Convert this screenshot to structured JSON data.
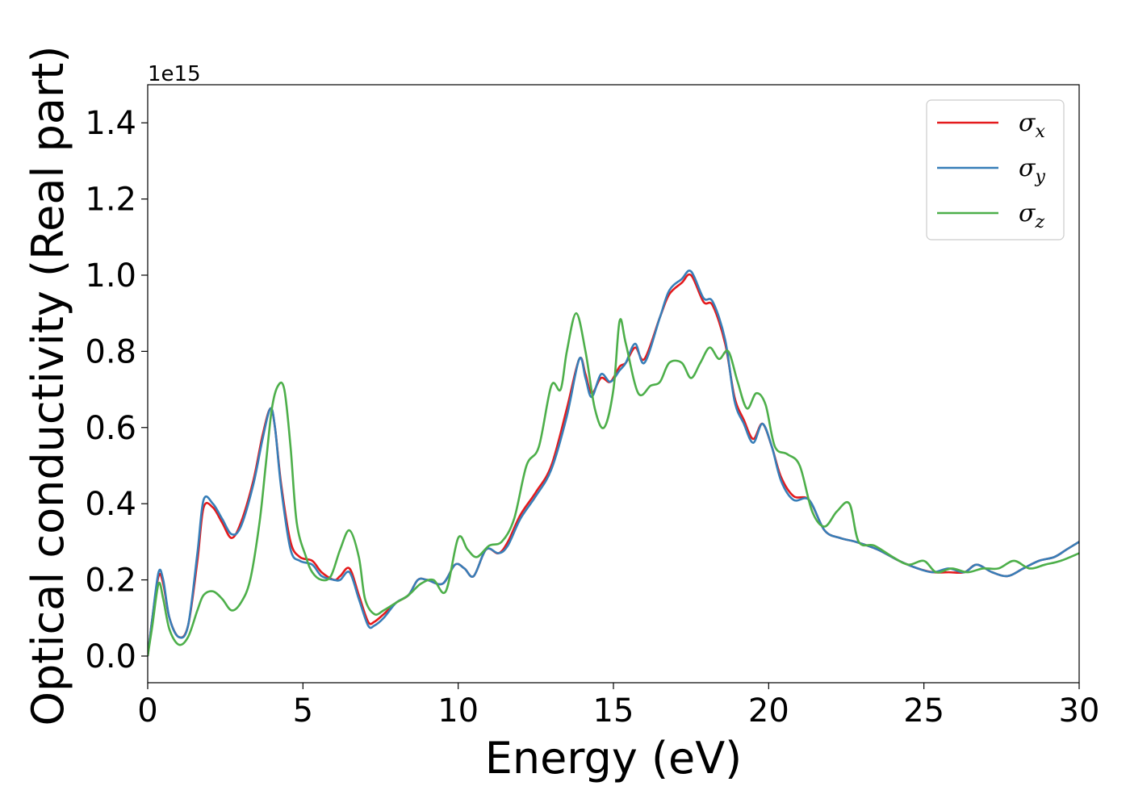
{
  "chart_data": {
    "type": "line",
    "xlabel": "Energy (eV)",
    "ylabel": "Optical conductivity (Real part)",
    "y_offset_label": "1e15",
    "xlim": [
      0,
      30
    ],
    "ylim": [
      -0.07,
      1.5
    ],
    "x_ticks": [
      0,
      5,
      10,
      15,
      20,
      25,
      30
    ],
    "y_ticks": [
      0.0,
      0.2,
      0.4,
      0.6,
      0.8,
      1.0,
      1.2,
      1.4
    ],
    "x_tick_labels": [
      "0",
      "5",
      "10",
      "15",
      "20",
      "25",
      "30"
    ],
    "y_tick_labels": [
      "0.0",
      "0.2",
      "0.4",
      "0.6",
      "0.8",
      "1.0",
      "1.2",
      "1.4"
    ],
    "grid": false,
    "legend_position": "top-right",
    "series": [
      {
        "name": "σx",
        "legend_symbol": "σ",
        "legend_subscript": "x",
        "color": "#e41a1c",
        "points": [
          [
            0,
            0
          ],
          [
            0.15,
            0.1
          ],
          [
            0.35,
            0.21
          ],
          [
            0.5,
            0.19
          ],
          [
            0.7,
            0.1
          ],
          [
            1.0,
            0.05
          ],
          [
            1.3,
            0.08
          ],
          [
            1.6,
            0.25
          ],
          [
            1.8,
            0.39
          ],
          [
            2.1,
            0.39
          ],
          [
            2.4,
            0.35
          ],
          [
            2.7,
            0.31
          ],
          [
            3.0,
            0.35
          ],
          [
            3.4,
            0.46
          ],
          [
            3.7,
            0.58
          ],
          [
            3.95,
            0.65
          ],
          [
            4.1,
            0.6
          ],
          [
            4.3,
            0.45
          ],
          [
            4.6,
            0.3
          ],
          [
            4.9,
            0.26
          ],
          [
            5.3,
            0.25
          ],
          [
            5.6,
            0.22
          ],
          [
            6.0,
            0.2
          ],
          [
            6.2,
            0.21
          ],
          [
            6.5,
            0.23
          ],
          [
            6.8,
            0.16
          ],
          [
            7.1,
            0.09
          ],
          [
            7.3,
            0.09
          ],
          [
            7.6,
            0.11
          ],
          [
            8.0,
            0.14
          ],
          [
            8.4,
            0.16
          ],
          [
            8.7,
            0.2
          ],
          [
            9.0,
            0.2
          ],
          [
            9.5,
            0.19
          ],
          [
            9.9,
            0.24
          ],
          [
            10.2,
            0.23
          ],
          [
            10.5,
            0.21
          ],
          [
            10.9,
            0.28
          ],
          [
            11.3,
            0.27
          ],
          [
            11.6,
            0.3
          ],
          [
            12.0,
            0.37
          ],
          [
            12.5,
            0.43
          ],
          [
            13.0,
            0.5
          ],
          [
            13.5,
            0.65
          ],
          [
            13.9,
            0.78
          ],
          [
            14.1,
            0.74
          ],
          [
            14.3,
            0.69
          ],
          [
            14.6,
            0.73
          ],
          [
            14.9,
            0.72
          ],
          [
            15.2,
            0.76
          ],
          [
            15.4,
            0.77
          ],
          [
            15.7,
            0.81
          ],
          [
            16.0,
            0.78
          ],
          [
            16.5,
            0.89
          ],
          [
            16.8,
            0.95
          ],
          [
            17.2,
            0.98
          ],
          [
            17.5,
            1.0
          ],
          [
            17.9,
            0.93
          ],
          [
            18.2,
            0.92
          ],
          [
            18.6,
            0.82
          ],
          [
            18.9,
            0.68
          ],
          [
            19.2,
            0.62
          ],
          [
            19.5,
            0.57
          ],
          [
            19.8,
            0.61
          ],
          [
            20.1,
            0.55
          ],
          [
            20.4,
            0.47
          ],
          [
            20.8,
            0.42
          ],
          [
            21.3,
            0.41
          ],
          [
            21.8,
            0.33
          ],
          [
            22.3,
            0.31
          ],
          [
            22.8,
            0.3
          ],
          [
            23.5,
            0.28
          ],
          [
            24.2,
            0.25
          ],
          [
            24.8,
            0.23
          ],
          [
            25.3,
            0.22
          ],
          [
            25.8,
            0.22
          ],
          [
            26.3,
            0.22
          ],
          [
            26.7,
            0.24
          ],
          [
            27.2,
            0.22
          ],
          [
            27.7,
            0.21
          ],
          [
            28.2,
            0.23
          ],
          [
            28.7,
            0.25
          ],
          [
            29.2,
            0.26
          ],
          [
            29.6,
            0.28
          ],
          [
            30,
            0.3
          ]
        ]
      },
      {
        "name": "σy",
        "legend_symbol": "σ",
        "legend_subscript": "y",
        "color": "#377eb8",
        "points": [
          [
            0,
            0
          ],
          [
            0.15,
            0.1
          ],
          [
            0.35,
            0.22
          ],
          [
            0.5,
            0.2
          ],
          [
            0.7,
            0.1
          ],
          [
            1.0,
            0.05
          ],
          [
            1.3,
            0.08
          ],
          [
            1.6,
            0.27
          ],
          [
            1.8,
            0.41
          ],
          [
            2.1,
            0.4
          ],
          [
            2.4,
            0.36
          ],
          [
            2.7,
            0.32
          ],
          [
            3.0,
            0.34
          ],
          [
            3.4,
            0.45
          ],
          [
            3.7,
            0.57
          ],
          [
            3.95,
            0.65
          ],
          [
            4.1,
            0.6
          ],
          [
            4.3,
            0.44
          ],
          [
            4.6,
            0.28
          ],
          [
            4.9,
            0.25
          ],
          [
            5.3,
            0.24
          ],
          [
            5.6,
            0.21
          ],
          [
            6.0,
            0.2
          ],
          [
            6.2,
            0.2
          ],
          [
            6.5,
            0.22
          ],
          [
            6.8,
            0.15
          ],
          [
            7.1,
            0.08
          ],
          [
            7.3,
            0.08
          ],
          [
            7.6,
            0.1
          ],
          [
            8.0,
            0.14
          ],
          [
            8.4,
            0.16
          ],
          [
            8.7,
            0.2
          ],
          [
            9.0,
            0.2
          ],
          [
            9.5,
            0.19
          ],
          [
            9.9,
            0.24
          ],
          [
            10.2,
            0.23
          ],
          [
            10.5,
            0.21
          ],
          [
            10.9,
            0.28
          ],
          [
            11.3,
            0.27
          ],
          [
            11.6,
            0.29
          ],
          [
            12.0,
            0.36
          ],
          [
            12.5,
            0.42
          ],
          [
            13.0,
            0.49
          ],
          [
            13.5,
            0.63
          ],
          [
            13.9,
            0.78
          ],
          [
            14.1,
            0.73
          ],
          [
            14.3,
            0.68
          ],
          [
            14.6,
            0.74
          ],
          [
            14.9,
            0.72
          ],
          [
            15.2,
            0.75
          ],
          [
            15.4,
            0.77
          ],
          [
            15.7,
            0.82
          ],
          [
            16.0,
            0.77
          ],
          [
            16.5,
            0.89
          ],
          [
            16.8,
            0.96
          ],
          [
            17.2,
            0.99
          ],
          [
            17.5,
            1.01
          ],
          [
            17.9,
            0.94
          ],
          [
            18.2,
            0.93
          ],
          [
            18.6,
            0.83
          ],
          [
            18.9,
            0.67
          ],
          [
            19.2,
            0.61
          ],
          [
            19.5,
            0.56
          ],
          [
            19.8,
            0.61
          ],
          [
            20.1,
            0.55
          ],
          [
            20.4,
            0.46
          ],
          [
            20.8,
            0.41
          ],
          [
            21.3,
            0.41
          ],
          [
            21.8,
            0.33
          ],
          [
            22.3,
            0.31
          ],
          [
            22.8,
            0.3
          ],
          [
            23.5,
            0.28
          ],
          [
            24.2,
            0.25
          ],
          [
            24.8,
            0.23
          ],
          [
            25.3,
            0.22
          ],
          [
            25.8,
            0.23
          ],
          [
            26.3,
            0.22
          ],
          [
            26.7,
            0.24
          ],
          [
            27.2,
            0.22
          ],
          [
            27.7,
            0.21
          ],
          [
            28.2,
            0.23
          ],
          [
            28.7,
            0.25
          ],
          [
            29.2,
            0.26
          ],
          [
            29.6,
            0.28
          ],
          [
            30,
            0.3
          ]
        ]
      },
      {
        "name": "σz",
        "legend_symbol": "σ",
        "legend_subscript": "z",
        "color": "#4daf4a",
        "points": [
          [
            0,
            0
          ],
          [
            0.15,
            0.08
          ],
          [
            0.35,
            0.19
          ],
          [
            0.5,
            0.15
          ],
          [
            0.7,
            0.07
          ],
          [
            1.0,
            0.03
          ],
          [
            1.3,
            0.05
          ],
          [
            1.6,
            0.12
          ],
          [
            1.8,
            0.16
          ],
          [
            2.1,
            0.17
          ],
          [
            2.4,
            0.15
          ],
          [
            2.7,
            0.12
          ],
          [
            3.0,
            0.14
          ],
          [
            3.3,
            0.2
          ],
          [
            3.6,
            0.35
          ],
          [
            3.8,
            0.5
          ],
          [
            4.0,
            0.65
          ],
          [
            4.2,
            0.71
          ],
          [
            4.4,
            0.7
          ],
          [
            4.6,
            0.55
          ],
          [
            4.8,
            0.35
          ],
          [
            5.1,
            0.26
          ],
          [
            5.3,
            0.22
          ],
          [
            5.6,
            0.2
          ],
          [
            5.9,
            0.21
          ],
          [
            6.2,
            0.28
          ],
          [
            6.5,
            0.33
          ],
          [
            6.8,
            0.26
          ],
          [
            7.0,
            0.15
          ],
          [
            7.3,
            0.11
          ],
          [
            7.6,
            0.12
          ],
          [
            8.0,
            0.14
          ],
          [
            8.4,
            0.16
          ],
          [
            8.8,
            0.19
          ],
          [
            9.2,
            0.2
          ],
          [
            9.6,
            0.17
          ],
          [
            10.0,
            0.31
          ],
          [
            10.3,
            0.28
          ],
          [
            10.6,
            0.26
          ],
          [
            11.0,
            0.29
          ],
          [
            11.4,
            0.3
          ],
          [
            11.8,
            0.36
          ],
          [
            12.2,
            0.5
          ],
          [
            12.6,
            0.55
          ],
          [
            13.0,
            0.71
          ],
          [
            13.3,
            0.7
          ],
          [
            13.5,
            0.8
          ],
          [
            13.8,
            0.9
          ],
          [
            14.1,
            0.8
          ],
          [
            14.4,
            0.65
          ],
          [
            14.7,
            0.6
          ],
          [
            15.0,
            0.7
          ],
          [
            15.2,
            0.88
          ],
          [
            15.4,
            0.82
          ],
          [
            15.8,
            0.69
          ],
          [
            16.2,
            0.71
          ],
          [
            16.5,
            0.72
          ],
          [
            16.8,
            0.77
          ],
          [
            17.2,
            0.77
          ],
          [
            17.5,
            0.73
          ],
          [
            17.8,
            0.77
          ],
          [
            18.1,
            0.81
          ],
          [
            18.4,
            0.78
          ],
          [
            18.7,
            0.8
          ],
          [
            19.0,
            0.72
          ],
          [
            19.3,
            0.65
          ],
          [
            19.6,
            0.69
          ],
          [
            19.9,
            0.66
          ],
          [
            20.2,
            0.55
          ],
          [
            20.6,
            0.53
          ],
          [
            21.0,
            0.5
          ],
          [
            21.4,
            0.38
          ],
          [
            21.8,
            0.34
          ],
          [
            22.2,
            0.38
          ],
          [
            22.6,
            0.4
          ],
          [
            22.9,
            0.3
          ],
          [
            23.4,
            0.29
          ],
          [
            24.0,
            0.26
          ],
          [
            24.5,
            0.24
          ],
          [
            25.0,
            0.25
          ],
          [
            25.4,
            0.22
          ],
          [
            25.9,
            0.23
          ],
          [
            26.4,
            0.22
          ],
          [
            26.9,
            0.23
          ],
          [
            27.4,
            0.23
          ],
          [
            27.9,
            0.25
          ],
          [
            28.4,
            0.23
          ],
          [
            28.9,
            0.24
          ],
          [
            29.4,
            0.25
          ],
          [
            30,
            0.27
          ]
        ]
      }
    ]
  }
}
